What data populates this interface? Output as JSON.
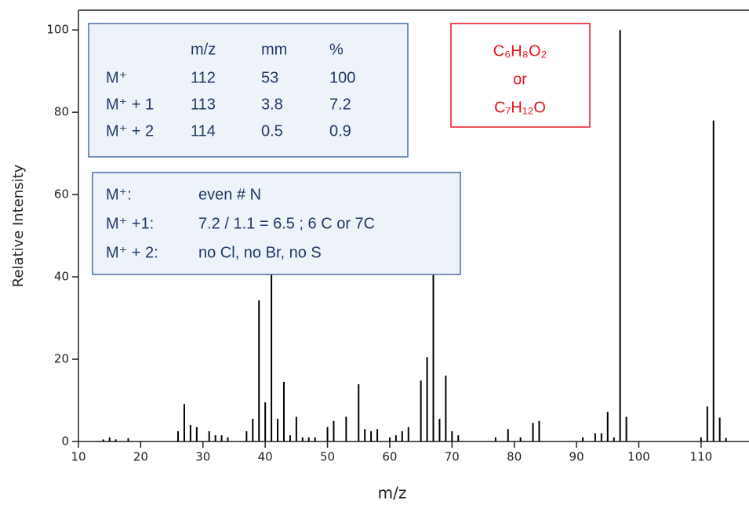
{
  "chart_data": {
    "type": "bar",
    "x_label": "m/z",
    "y_label": "Relative Intensity",
    "x": [
      14,
      15,
      16,
      18,
      26,
      27,
      28,
      29,
      31,
      32,
      33,
      34,
      37,
      38,
      39,
      40,
      41,
      42,
      43,
      44,
      45,
      46,
      47,
      48,
      50,
      51,
      53,
      55,
      56,
      57,
      58,
      60,
      61,
      62,
      63,
      65,
      66,
      67,
      68,
      69,
      70,
      71,
      77,
      79,
      81,
      83,
      84,
      91,
      93,
      94,
      95,
      96,
      97,
      98,
      110,
      111,
      112,
      113,
      114
    ],
    "values": [
      0.5,
      1,
      0.5,
      0.8,
      2.5,
      9.1,
      4,
      3.5,
      2.5,
      1.5,
      1.5,
      1,
      2.5,
      5.5,
      34.3,
      9.5,
      45,
      5.5,
      14.5,
      1.5,
      6,
      1,
      1,
      1,
      3.5,
      5,
      6,
      13.9,
      3,
      2.5,
      3,
      1,
      1.5,
      2.5,
      3.5,
      14.8,
      20.5,
      44,
      5.5,
      16,
      2.5,
      1.5,
      1,
      3,
      1,
      4.5,
      5,
      1,
      2,
      2,
      7.2,
      1,
      100,
      6,
      1,
      8.5,
      78,
      5.8,
      0.9
    ],
    "color": "#000000",
    "xlim": [
      10,
      117.7
    ],
    "ylim": [
      0,
      104.8
    ],
    "xticks": [
      10,
      20,
      30,
      40,
      50,
      60,
      70,
      80,
      90,
      100,
      110
    ],
    "yticks": [
      0,
      20,
      40,
      60,
      80,
      100
    ],
    "annotations": {
      "isotope_table": {
        "header": [
          "m/z",
          "mm",
          "%"
        ],
        "rows": [
          [
            "M⁺",
            112,
            53,
            100
          ],
          [
            "M⁺ + 1",
            113,
            3.8,
            7.2
          ],
          [
            "M⁺ + 2",
            114,
            0.5,
            0.9
          ]
        ]
      },
      "interpretation": [
        [
          "M⁺:",
          "even  # N"
        ],
        [
          "M⁺ +1:",
          "7.2 / 1.1 = 6.5 ;   6 C or 7C"
        ],
        [
          "M⁺ + 2:",
          "no Cl, no Br, no S"
        ]
      ],
      "formula": [
        "C₆H₈O₂",
        "or",
        "C₇H₁₂O"
      ]
    }
  }
}
